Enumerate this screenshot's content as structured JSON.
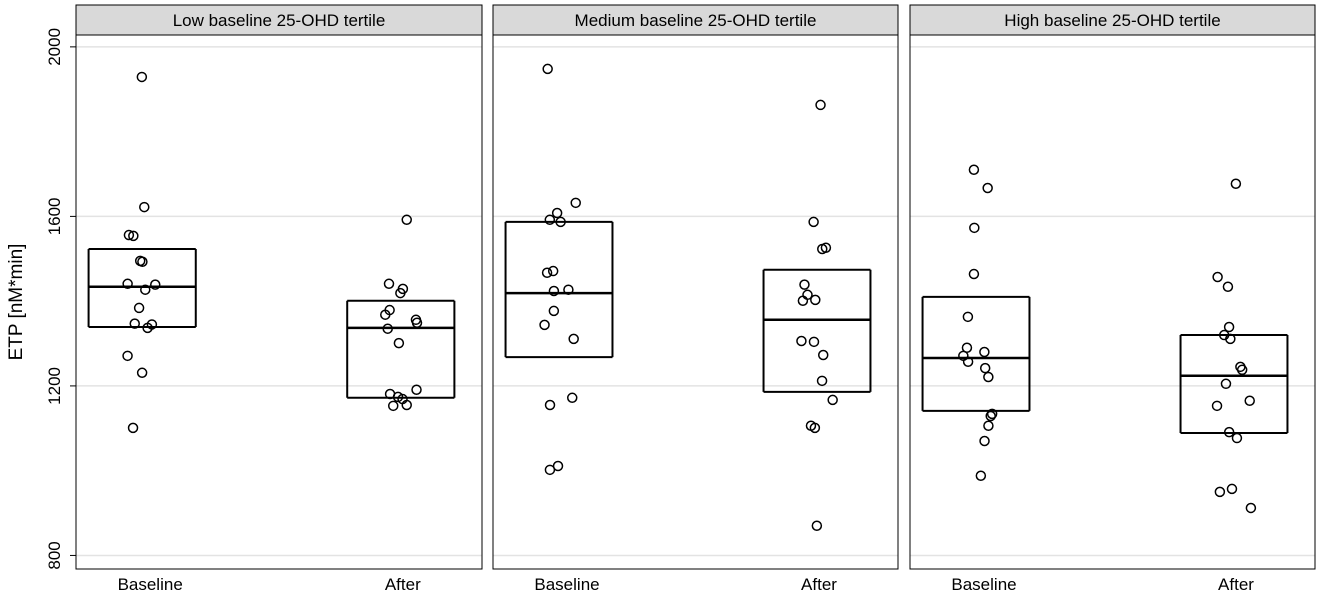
{
  "chart_data": {
    "type": "box",
    "ylabel": "ETP [nM*min]",
    "ylim": [
      768,
      2028
    ],
    "yticks": [
      800,
      1200,
      1600,
      2000
    ],
    "grid": true,
    "categories": [
      "Baseline",
      "After"
    ],
    "panels": [
      {
        "title": "Low baseline 25-OHD tertile",
        "boxes": [
          {
            "q1": 1339,
            "median": 1434,
            "q3": 1523,
            "points": [
              1929,
              1622,
              1556,
              1554,
              1495,
              1493,
              1441,
              1439,
              1427,
              1384,
              1347,
              1345,
              1337,
              1271,
              1231,
              1101
            ]
          },
          {
            "q1": 1172,
            "median": 1337,
            "q3": 1401,
            "points": [
              1592,
              1441,
              1429,
              1419,
              1379,
              1368,
              1356,
              1349,
              1335,
              1301,
              1191,
              1181,
              1174,
              1169,
              1155,
              1153
            ]
          }
        ]
      },
      {
        "title": "Medium baseline 25-OHD tertile",
        "boxes": [
          {
            "q1": 1268,
            "median": 1419,
            "q3": 1587,
            "points": [
              1948,
              1632,
              1608,
              1592,
              1587,
              1471,
              1467,
              1427,
              1424,
              1377,
              1344,
              1311,
              1155,
              1172,
              1011,
              1002
            ]
          },
          {
            "q1": 1186,
            "median": 1356,
            "q3": 1474,
            "points": [
              1863,
              1587,
              1526,
              1523,
              1439,
              1415,
              1403,
              1401,
              1306,
              1304,
              1273,
              1212,
              1167,
              1106,
              1101,
              870
            ]
          }
        ]
      },
      {
        "title": "High baseline 25-OHD tertile",
        "boxes": [
          {
            "q1": 1141,
            "median": 1266,
            "q3": 1410,
            "points": [
              1710,
              1667,
              1573,
              1464,
              1363,
              1290,
              1280,
              1271,
              1257,
              1242,
              1221,
              1134,
              1129,
              1106,
              1070,
              988
            ]
          },
          {
            "q1": 1089,
            "median": 1224,
            "q3": 1320,
            "points": [
              1677,
              1457,
              1434,
              1339,
              1320,
              1311,
              1245,
              1238,
              1205,
              1165,
              1153,
              1091,
              1077,
              957,
              950,
              912
            ]
          }
        ]
      }
    ]
  }
}
